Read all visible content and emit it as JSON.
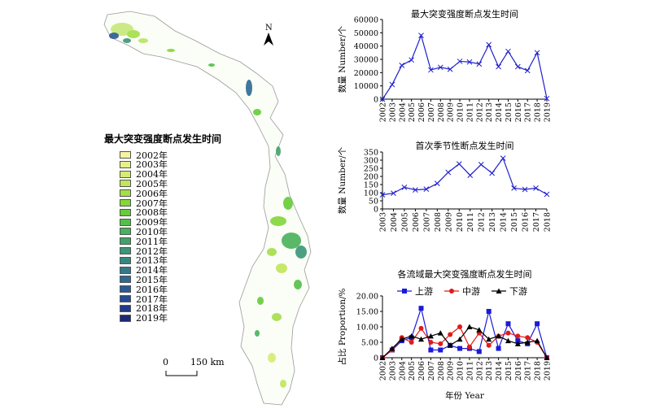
{
  "map": {
    "north_label": "N",
    "scale_zero": "0",
    "scale_distance": "150 km",
    "legend_title": "最大突变强度断点发生时间",
    "legend_items": [
      {
        "label": "2002年",
        "color": "#f5f5a0"
      },
      {
        "label": "2003年",
        "color": "#e8f08a"
      },
      {
        "label": "2004年",
        "color": "#d6ec72"
      },
      {
        "label": "2005年",
        "color": "#c0e65a"
      },
      {
        "label": "2006年",
        "color": "#a4de48"
      },
      {
        "label": "2007年",
        "color": "#84d63a"
      },
      {
        "label": "2008年",
        "color": "#66cc3a"
      },
      {
        "label": "2009年",
        "color": "#52c046"
      },
      {
        "label": "2010年",
        "color": "#48b25a"
      },
      {
        "label": "2011年",
        "color": "#40a468"
      },
      {
        "label": "2012年",
        "color": "#3a9676"
      },
      {
        "label": "2013年",
        "color": "#358882"
      },
      {
        "label": "2014年",
        "color": "#307a8c"
      },
      {
        "label": "2015年",
        "color": "#2c6a92"
      },
      {
        "label": "2016年",
        "color": "#2a5a94"
      },
      {
        "label": "2017年",
        "color": "#264a92"
      },
      {
        "label": "2018年",
        "color": "#22388a"
      },
      {
        "label": "2019年",
        "color": "#1c2878"
      }
    ]
  },
  "chart_data": [
    {
      "type": "line",
      "title": "最大突变强度断点发生时间",
      "ylabel": "数量 Number/个",
      "xlabel": "",
      "categories": [
        "2002",
        "2003",
        "2004",
        "2005",
        "2006",
        "2007",
        "2008",
        "2009",
        "2010",
        "2011",
        "2012",
        "2013",
        "2014",
        "2015",
        "2016",
        "2017",
        "2018",
        "2019"
      ],
      "ylim": [
        0,
        60000
      ],
      "yticks": [
        "0",
        "10000",
        "20000",
        "30000",
        "40000",
        "50000",
        "60000"
      ],
      "series": [
        {
          "values": [
            0,
            11000,
            25500,
            29500,
            48000,
            22000,
            24000,
            22500,
            28500,
            28000,
            26500,
            41000,
            24500,
            36000,
            24500,
            21500,
            35000,
            500
          ],
          "color": "#1f1fcc",
          "marker": "x"
        }
      ]
    },
    {
      "type": "line",
      "title": "首次季节性断点发生时间",
      "ylabel": "数量 Number/个",
      "xlabel": "",
      "categories": [
        "2003",
        "2004",
        "2005",
        "2006",
        "2007",
        "2008",
        "2009",
        "2010",
        "2011",
        "2012",
        "2013",
        "2014",
        "2015",
        "2016",
        "2017",
        "2018"
      ],
      "ylim": [
        0,
        350
      ],
      "yticks": [
        "0",
        "50",
        "100",
        "150",
        "200",
        "250",
        "300",
        "350"
      ],
      "series": [
        {
          "values": [
            87,
            97,
            133,
            117,
            122,
            157,
            225,
            277,
            207,
            273,
            220,
            312,
            128,
            120,
            128,
            90
          ],
          "color": "#1f1fcc",
          "marker": "x"
        }
      ]
    },
    {
      "type": "line",
      "title": "各流域最大突变强度断点发生时间",
      "ylabel": "占比 Proportion/%",
      "xlabel": "年份 Year",
      "categories": [
        "2002",
        "2003",
        "2004",
        "2005",
        "2006",
        "2007",
        "2008",
        "2009",
        "2010",
        "2011",
        "2012",
        "2013",
        "2014",
        "2015",
        "2016",
        "2017",
        "2018",
        "2019"
      ],
      "ylim": [
        0,
        20
      ],
      "yticks": [
        "0",
        "5.00",
        "10.00",
        "15.00",
        "20.00"
      ],
      "legend": "top",
      "series": [
        {
          "name": "上游",
          "color": "#1a1adb",
          "marker": "square",
          "values": [
            0,
            2.5,
            5.5,
            6.5,
            16,
            2.5,
            2.5,
            4,
            3,
            3,
            2,
            15,
            3,
            11,
            5.5,
            4.5,
            11,
            0
          ]
        },
        {
          "name": "中游",
          "color": "#e21a1a",
          "marker": "circle",
          "values": [
            0,
            2.5,
            6.5,
            5,
            9.5,
            5,
            4.5,
            7.5,
            10,
            3.5,
            8,
            4,
            7,
            8,
            7,
            6.5,
            5,
            0
          ]
        },
        {
          "name": "下游",
          "color": "#000000",
          "marker": "triangle",
          "values": [
            0,
            3,
            6,
            7,
            6,
            7,
            8,
            4,
            6,
            10,
            9,
            6,
            7,
            5.5,
            4.5,
            5,
            5.5,
            0
          ]
        }
      ]
    }
  ]
}
